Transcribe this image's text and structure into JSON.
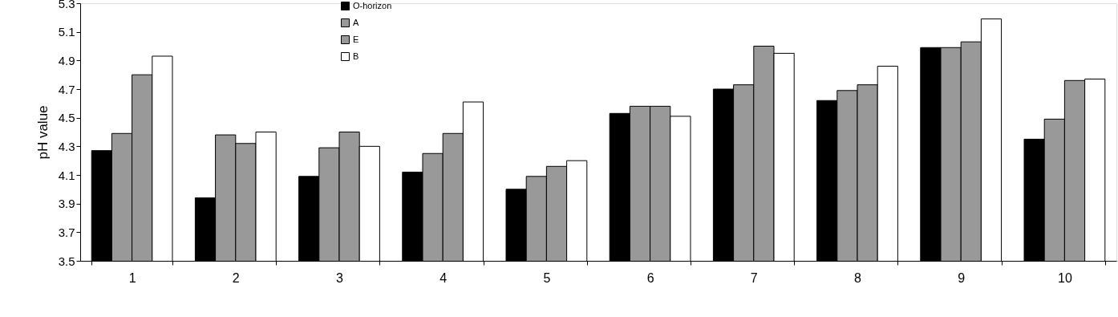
{
  "chart_data": {
    "type": "bar",
    "ylabel": "pH value",
    "categories": [
      "1",
      "2",
      "3",
      "4",
      "5",
      "6",
      "7",
      "8",
      "9",
      "10"
    ],
    "series": [
      {
        "name": "O-horizon",
        "color": "#000000",
        "values": [
          4.27,
          3.94,
          4.09,
          4.12,
          4.0,
          4.53,
          4.7,
          4.62,
          4.99,
          4.35
        ]
      },
      {
        "name": "A",
        "color": "#999999",
        "values": [
          4.39,
          4.38,
          4.29,
          4.25,
          4.09,
          4.58,
          4.73,
          4.69,
          4.99,
          4.49
        ]
      },
      {
        "name": "E",
        "color": "#999999",
        "values": [
          4.8,
          4.32,
          4.4,
          4.39,
          4.16,
          4.58,
          5.0,
          4.73,
          5.03,
          4.76
        ]
      },
      {
        "name": "B",
        "color": "#ffffff",
        "values": [
          4.93,
          4.4,
          4.3,
          4.61,
          4.2,
          4.51,
          4.95,
          4.86,
          5.19,
          4.77
        ]
      }
    ],
    "ylim": [
      3.5,
      5.3
    ],
    "yticks": [
      3.5,
      3.7,
      3.9,
      4.1,
      4.3,
      4.5,
      4.7,
      4.9,
      5.1,
      5.3
    ],
    "grid": false,
    "legend": "top"
  }
}
